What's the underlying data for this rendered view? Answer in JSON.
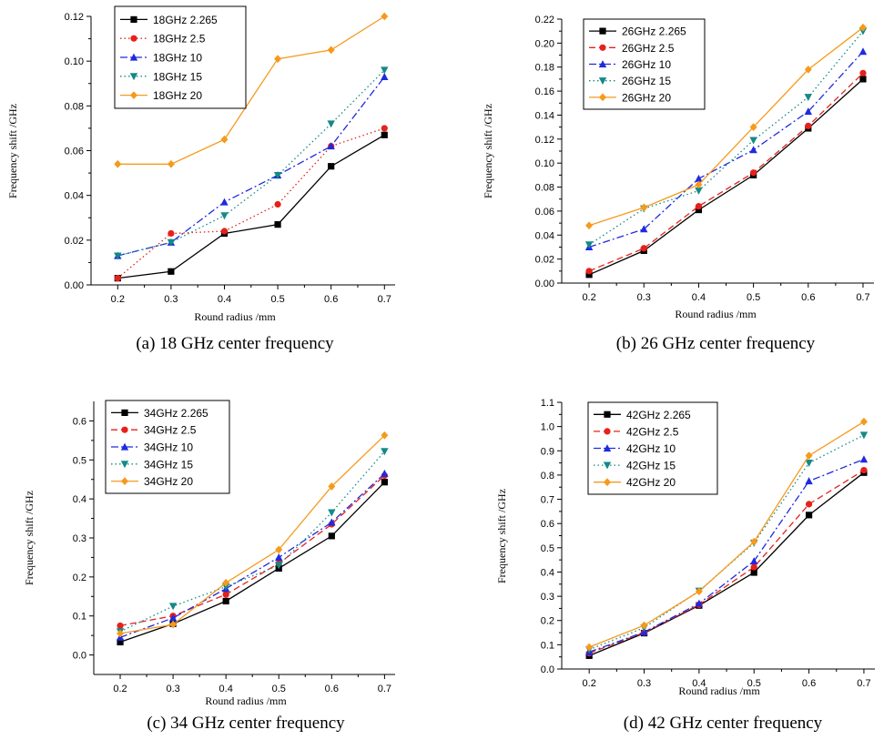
{
  "chart_data": [
    {
      "type": "line",
      "caption": "(a) 18 GHz center frequency",
      "xlabel": "Round radius /mm",
      "ylabel": "Frequency shift /GHz",
      "x": [
        0.2,
        0.3,
        0.4,
        0.5,
        0.6,
        0.7
      ],
      "xlim": [
        0.15,
        0.72
      ],
      "ylim": [
        0.0,
        0.12
      ],
      "xticks": [
        "0.2",
        "0.3",
        "0.4",
        "0.5",
        "0.6",
        "0.7"
      ],
      "yticks": [
        "0.00",
        "0.02",
        "0.04",
        "0.06",
        "0.08",
        "0.10",
        "0.12"
      ],
      "legend_position": "top-left",
      "series": [
        {
          "name": "18GHz 2.265",
          "color": "#000000",
          "marker": "square",
          "dash": "solid",
          "values": [
            0.003,
            0.006,
            0.023,
            0.027,
            0.053,
            0.067
          ]
        },
        {
          "name": "18GHz 2.5",
          "color": "#e8201a",
          "marker": "circle",
          "dash": "dot",
          "values": [
            0.003,
            0.023,
            0.024,
            0.036,
            0.062,
            0.07
          ]
        },
        {
          "name": "18GHz 10",
          "color": "#1f2ae0",
          "marker": "triangle-up",
          "dash": "dashdot",
          "values": [
            0.013,
            0.019,
            0.037,
            0.049,
            0.062,
            0.093
          ]
        },
        {
          "name": "18GHz 15",
          "color": "#138a85",
          "marker": "triangle-down",
          "dash": "dot",
          "values": [
            0.013,
            0.019,
            0.031,
            0.049,
            0.072,
            0.096
          ]
        },
        {
          "name": "18GHz 20",
          "color": "#f59a1d",
          "marker": "diamond",
          "dash": "solid",
          "values": [
            0.054,
            0.054,
            0.065,
            0.101,
            0.105,
            0.12
          ]
        }
      ]
    },
    {
      "type": "line",
      "caption": "(b) 26 GHz center frequency",
      "xlabel": "Round radius /mm",
      "ylabel": "Frequency shift /GHz",
      "x": [
        0.2,
        0.3,
        0.4,
        0.5,
        0.6,
        0.7
      ],
      "xlim": [
        0.15,
        0.72
      ],
      "ylim": [
        0.0,
        0.22
      ],
      "xticks": [
        "0.2",
        "0.3",
        "0.4",
        "0.5",
        "0.6",
        "0.7"
      ],
      "yticks": [
        "0.00",
        "0.02",
        "0.04",
        "0.06",
        "0.08",
        "0.10",
        "0.12",
        "0.14",
        "0.16",
        "0.18",
        "0.20",
        "0.22"
      ],
      "legend_position": "top-left",
      "series": [
        {
          "name": "26GHz 2.265",
          "color": "#000000",
          "marker": "square",
          "dash": "solid",
          "values": [
            0.007,
            0.027,
            0.061,
            0.09,
            0.129,
            0.17
          ]
        },
        {
          "name": "26GHz 2.5",
          "color": "#e8201a",
          "marker": "circle",
          "dash": "dash",
          "values": [
            0.01,
            0.029,
            0.064,
            0.092,
            0.131,
            0.175
          ]
        },
        {
          "name": "26GHz 10",
          "color": "#1f2ae0",
          "marker": "triangle-up",
          "dash": "dashdot",
          "values": [
            0.03,
            0.045,
            0.087,
            0.111,
            0.143,
            0.193
          ]
        },
        {
          "name": "26GHz 15",
          "color": "#138a85",
          "marker": "triangle-down",
          "dash": "dot",
          "values": [
            0.032,
            0.062,
            0.077,
            0.119,
            0.155,
            0.21
          ]
        },
        {
          "name": "26GHz 20",
          "color": "#f59a1d",
          "marker": "diamond",
          "dash": "solid",
          "values": [
            0.048,
            0.063,
            0.082,
            0.13,
            0.178,
            0.213
          ]
        }
      ]
    },
    {
      "type": "line",
      "caption": "(c) 34 GHz center frequency",
      "xlabel": "Round radius /mm",
      "ylabel": "Frequency shift /GHz",
      "x": [
        0.2,
        0.3,
        0.4,
        0.5,
        0.6,
        0.7
      ],
      "xlim": [
        0.15,
        0.72
      ],
      "ylim": [
        -0.05,
        0.65
      ],
      "xticks": [
        "0.2",
        "0.3",
        "0.4",
        "0.5",
        "0.6",
        "0.7"
      ],
      "yticks": [
        "0.0",
        "0.1",
        "0.2",
        "0.3",
        "0.4",
        "0.5",
        "0.6"
      ],
      "legend_position": "top-left",
      "series": [
        {
          "name": "34GHz 2.265",
          "color": "#000000",
          "marker": "square",
          "dash": "solid",
          "values": [
            0.033,
            0.08,
            0.138,
            0.222,
            0.305,
            0.443
          ]
        },
        {
          "name": "34GHz 2.5",
          "color": "#e8201a",
          "marker": "circle",
          "dash": "dash",
          "values": [
            0.075,
            0.1,
            0.155,
            0.235,
            0.335,
            0.46
          ]
        },
        {
          "name": "34GHz 10",
          "color": "#1f2ae0",
          "marker": "triangle-up",
          "dash": "dashdot",
          "values": [
            0.045,
            0.095,
            0.17,
            0.25,
            0.34,
            0.465
          ]
        },
        {
          "name": "34GHz 15",
          "color": "#138a85",
          "marker": "triangle-down",
          "dash": "dot",
          "values": [
            0.06,
            0.125,
            0.175,
            0.23,
            0.365,
            0.522
          ]
        },
        {
          "name": "34GHz 20",
          "color": "#f59a1d",
          "marker": "diamond",
          "dash": "solid",
          "values": [
            0.055,
            0.078,
            0.185,
            0.27,
            0.432,
            0.563
          ]
        }
      ]
    },
    {
      "type": "line",
      "caption": "(d) 42 GHz center frequency",
      "xlabel": "Round radius /mm",
      "ylabel": "Frequency shift /GHz",
      "x": [
        0.2,
        0.3,
        0.4,
        0.5,
        0.6,
        0.7
      ],
      "xlim": [
        0.15,
        0.72
      ],
      "ylim": [
        0.0,
        1.1
      ],
      "xticks": [
        "0.2",
        "0.3",
        "0.4",
        "0.5",
        "0.6",
        "0.7"
      ],
      "yticks": [
        "0.0",
        "0.1",
        "0.2",
        "0.3",
        "0.4",
        "0.5",
        "0.6",
        "0.7",
        "0.8",
        "0.9",
        "1.0",
        "1.1"
      ],
      "legend_position": "top-left",
      "series": [
        {
          "name": "42GHz 2.265",
          "color": "#000000",
          "marker": "square",
          "dash": "solid",
          "values": [
            0.055,
            0.148,
            0.262,
            0.398,
            0.635,
            0.81
          ]
        },
        {
          "name": "42GHz 2.5",
          "color": "#e8201a",
          "marker": "circle",
          "dash": "dash",
          "values": [
            0.065,
            0.15,
            0.265,
            0.42,
            0.68,
            0.82
          ]
        },
        {
          "name": "42GHz 10",
          "color": "#1f2ae0",
          "marker": "triangle-up",
          "dash": "dashdot",
          "values": [
            0.07,
            0.152,
            0.27,
            0.445,
            0.775,
            0.865
          ]
        },
        {
          "name": "42GHz 15",
          "color": "#138a85",
          "marker": "triangle-down",
          "dash": "dot",
          "values": [
            0.08,
            0.17,
            0.322,
            0.52,
            0.85,
            0.965
          ]
        },
        {
          "name": "42GHz 20",
          "color": "#f59a1d",
          "marker": "diamond",
          "dash": "solid",
          "values": [
            0.09,
            0.18,
            0.32,
            0.525,
            0.88,
            1.02
          ]
        }
      ]
    }
  ]
}
